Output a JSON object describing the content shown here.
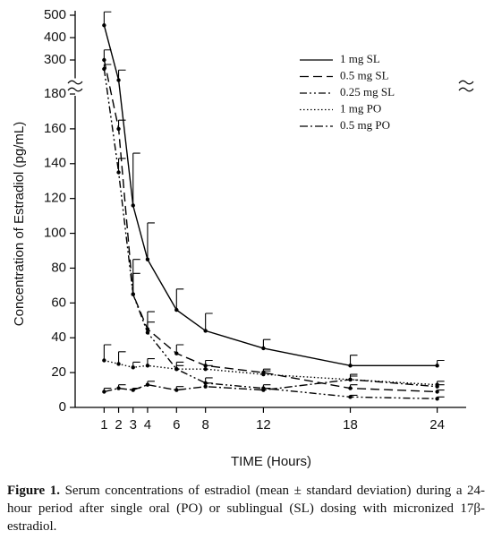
{
  "chart_data": {
    "type": "line",
    "ylabel": "Concentration of Estradiol  (pg/mL)",
    "xlabel": "TIME  (Hours)",
    "x": [
      1,
      2,
      3,
      4,
      6,
      8,
      12,
      18,
      24
    ],
    "xlim": [
      -1,
      26
    ],
    "xticks": [
      1,
      2,
      3,
      4,
      6,
      8,
      12,
      18,
      24
    ],
    "ylim": [
      0,
      520
    ],
    "ybreak": [
      180,
      210
    ],
    "yticks": [
      0,
      20,
      40,
      60,
      80,
      100,
      120,
      140,
      160,
      180,
      300,
      400,
      500
    ],
    "legend": "upper right",
    "series": [
      {
        "name": "1 mg SL",
        "color": "#000000",
        "dash": "none",
        "values": [
          455,
          210,
          116,
          85,
          56,
          44,
          34,
          24,
          24
        ],
        "errors": [
          60,
          45,
          30,
          21,
          12,
          10,
          5,
          6,
          3
        ]
      },
      {
        "name": "0.5 mg SL",
        "color": "#000000",
        "dash": "10,5",
        "values": [
          300,
          160,
          65,
          45,
          31,
          24,
          20,
          11,
          9
        ],
        "errors": [
          45,
          5,
          20,
          10,
          5,
          3,
          2,
          2,
          1
        ]
      },
      {
        "name": "0.25 mg SL",
        "color": "#000000",
        "dash": "8,3,2,3,2,3",
        "values": [
          260,
          135,
          65,
          43,
          22,
          14,
          11,
          6,
          5
        ],
        "errors": [
          20,
          8,
          12,
          6,
          4,
          3,
          2,
          1,
          1
        ]
      },
      {
        "name": "1 mg PO",
        "color": "#000000",
        "dash": "1.5,2.5",
        "values": [
          27,
          25,
          23,
          24,
          22,
          22,
          19,
          16,
          13
        ],
        "errors": [
          9,
          7,
          3,
          4,
          2,
          2,
          2,
          3,
          2
        ]
      },
      {
        "name": "0.5 mg PO",
        "color": "#000000",
        "dash": "9,3,2,3",
        "values": [
          9,
          11,
          10,
          13,
          10,
          12,
          10,
          16,
          12
        ],
        "errors": [
          2,
          2,
          1,
          2,
          2,
          2,
          1,
          2,
          1
        ]
      }
    ]
  },
  "caption": {
    "label": "Figure 1.",
    "text": "Serum concentrations of estradiol (mean ± standard deviation) during a 24-hour period after single oral (PO) or sublingual (SL) dosing with micronized 17β-estradiol."
  }
}
